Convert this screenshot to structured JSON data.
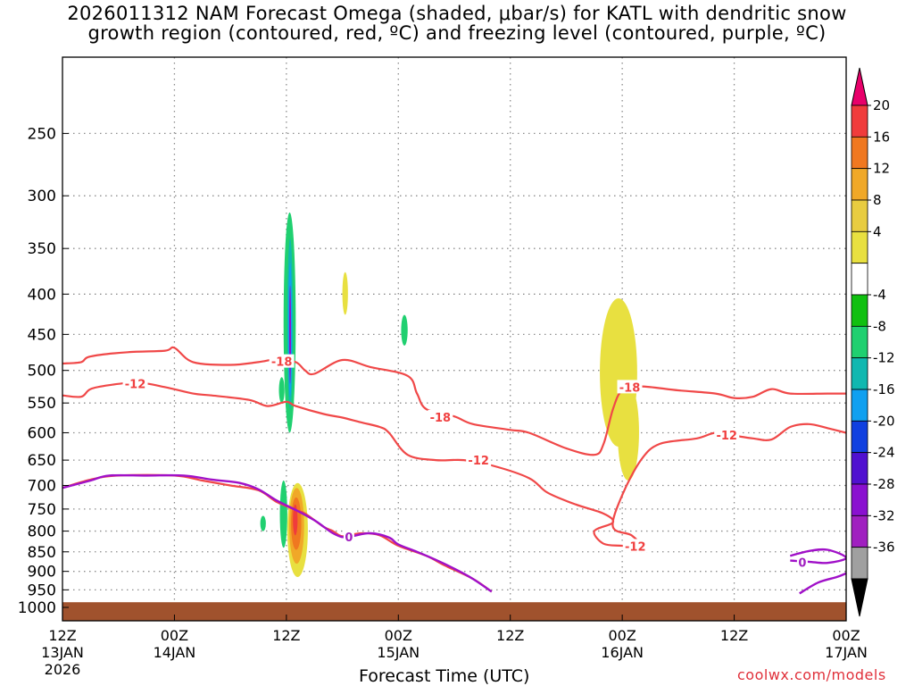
{
  "title_line1": "2026011312 NAM Forecast Omega (shaded, μbar/s) for KATL with dendritic snow",
  "title_line2": "growth region (contoured, red, ºC) and freezing level (contoured, purple, ºC)",
  "x_axis_title": "Forecast Time (UTC)",
  "credit": "coolwx.com/models",
  "chart_data": {
    "type": "time-height cross section",
    "x_unit": "hours since 2026-01-13 12Z",
    "xlim": [
      0,
      84
    ],
    "ylim_hPa": [
      1040,
      200
    ],
    "y_ticks": [
      250,
      300,
      350,
      400,
      450,
      500,
      550,
      600,
      650,
      700,
      750,
      800,
      850,
      900,
      950,
      1000
    ],
    "x_ticks": [
      {
        "h": 0,
        "l1": "12Z",
        "l2": "13JAN",
        "l3": "2026"
      },
      {
        "h": 12,
        "l1": "00Z",
        "l2": "14JAN",
        "l3": ""
      },
      {
        "h": 24,
        "l1": "12Z",
        "l2": "",
        "l3": ""
      },
      {
        "h": 36,
        "l1": "00Z",
        "l2": "15JAN",
        "l3": ""
      },
      {
        "h": 48,
        "l1": "12Z",
        "l2": "",
        "l3": ""
      },
      {
        "h": 60,
        "l1": "00Z",
        "l2": "16JAN",
        "l3": ""
      },
      {
        "h": 72,
        "l1": "12Z",
        "l2": "",
        "l3": ""
      },
      {
        "h": 84,
        "l1": "00Z",
        "l2": "17JAN",
        "l3": ""
      }
    ],
    "colorbar": {
      "labels": [
        "20",
        "16",
        "12",
        "8",
        "4",
        "-4",
        "-8",
        "-12",
        "-16",
        "-20",
        "-24",
        "-28",
        "-32",
        "-36"
      ],
      "colors": [
        "#e8006a",
        "#f03c3c",
        "#f07820",
        "#f0a828",
        "#e8cc40",
        "#e8e040",
        "#ffffff",
        "#10c010",
        "#20d070",
        "#10b8b0",
        "#10a0f0",
        "#1040e0",
        "#5010d0",
        "#8a10d0",
        "#a020c0",
        "#a0a0a0",
        "#000000"
      ]
    },
    "terrain_color": "#a0522d",
    "dgz_contours": [
      {
        "level": -18,
        "label": "-18",
        "points": [
          [
            0,
            490
          ],
          [
            2,
            488
          ],
          [
            3,
            480
          ],
          [
            7,
            474
          ],
          [
            11,
            472
          ],
          [
            12,
            468
          ],
          [
            14,
            488
          ],
          [
            18,
            492
          ],
          [
            21,
            488
          ],
          [
            23,
            484
          ],
          [
            25,
            488
          ],
          [
            26,
            500
          ],
          [
            27,
            505
          ],
          [
            30,
            485
          ],
          [
            33,
            495
          ],
          [
            37,
            508
          ],
          [
            38,
            535
          ],
          [
            39,
            560
          ],
          [
            42,
            572
          ],
          [
            44,
            585
          ],
          [
            48,
            595
          ],
          [
            50,
            600
          ],
          [
            54,
            628
          ],
          [
            57,
            640
          ],
          [
            58,
            620
          ],
          [
            59,
            560
          ],
          [
            60,
            530
          ],
          [
            62,
            524
          ],
          [
            66,
            530
          ],
          [
            70,
            535
          ],
          [
            72,
            542
          ],
          [
            74,
            540
          ],
          [
            76,
            528
          ],
          [
            78,
            535
          ],
          [
            82,
            535
          ],
          [
            84,
            535
          ]
        ]
      },
      {
        "level": -12,
        "label": "-12",
        "points": [
          [
            0,
            538
          ],
          [
            2,
            540
          ],
          [
            3,
            528
          ],
          [
            5,
            522
          ],
          [
            8,
            518
          ],
          [
            11,
            525
          ],
          [
            14,
            535
          ],
          [
            16,
            538
          ],
          [
            20,
            545
          ],
          [
            22,
            555
          ],
          [
            24,
            548
          ],
          [
            25,
            555
          ],
          [
            28,
            568
          ],
          [
            30,
            574
          ],
          [
            32,
            582
          ],
          [
            34,
            590
          ],
          [
            35,
            600
          ],
          [
            37,
            640
          ],
          [
            40,
            650
          ],
          [
            43,
            650
          ],
          [
            46,
            660
          ],
          [
            50,
            685
          ],
          [
            52,
            715
          ],
          [
            55,
            740
          ],
          [
            58,
            760
          ],
          [
            59,
            780
          ],
          [
            57,
            800
          ],
          [
            58,
            830
          ],
          [
            60,
            835
          ],
          [
            62,
            838
          ],
          [
            61,
            810
          ],
          [
            59,
            790
          ],
          [
            60,
            720
          ],
          [
            62,
            650
          ],
          [
            64,
            620
          ],
          [
            68,
            610
          ],
          [
            70,
            600
          ],
          [
            72,
            605
          ],
          [
            74,
            610
          ],
          [
            76,
            612
          ],
          [
            78,
            590
          ],
          [
            80,
            585
          ],
          [
            82,
            592
          ],
          [
            84,
            600
          ]
        ]
      },
      {
        "level": 0,
        "label": "0",
        "points": [
          [
            0,
            705
          ],
          [
            3,
            688
          ],
          [
            6,
            680
          ],
          [
            12,
            680
          ],
          [
            15,
            690
          ],
          [
            18,
            700
          ],
          [
            21,
            710
          ],
          [
            23,
            735
          ],
          [
            25,
            752
          ],
          [
            26,
            760
          ],
          [
            28,
            790
          ],
          [
            29,
            800
          ],
          [
            30,
            812
          ],
          [
            32,
            805
          ],
          [
            34,
            810
          ],
          [
            36,
            835
          ],
          [
            39,
            860
          ],
          [
            41,
            885
          ],
          [
            44,
            920
          ],
          [
            46,
            955
          ]
        ]
      }
    ],
    "frz_contours": [
      {
        "level": 0,
        "label": "0",
        "points": [
          [
            0,
            705
          ],
          [
            3,
            690
          ],
          [
            5,
            680
          ],
          [
            9,
            680
          ],
          [
            13,
            680
          ],
          [
            16,
            688
          ],
          [
            19,
            695
          ],
          [
            21,
            708
          ],
          [
            23,
            732
          ],
          [
            25,
            752
          ],
          [
            27,
            775
          ],
          [
            28,
            790
          ],
          [
            29,
            805
          ],
          [
            30,
            814
          ],
          [
            31,
            812
          ],
          [
            33,
            805
          ],
          [
            35,
            815
          ],
          [
            36,
            832
          ],
          [
            38,
            850
          ],
          [
            40,
            870
          ],
          [
            42,
            893
          ],
          [
            44,
            920
          ],
          [
            46,
            955
          ]
        ]
      },
      {
        "level": 0,
        "label": "0",
        "points": [
          [
            79,
            960
          ],
          [
            81,
            930
          ],
          [
            83,
            915
          ],
          [
            84,
            905
          ]
        ]
      },
      {
        "level": 0,
        "label": "0",
        "points": [
          [
            78,
            860
          ],
          [
            80,
            848
          ],
          [
            82,
            845
          ],
          [
            84,
            865
          ],
          [
            82,
            878
          ],
          [
            80,
            875
          ],
          [
            78,
            872
          ]
        ]
      }
    ],
    "omega_blobs": [
      {
        "value": -8,
        "h_min": 23.7,
        "h_max": 25.0,
        "p_top": 315,
        "p_bot": 600
      },
      {
        "value": -12,
        "h_min": 24.1,
        "h_max": 24.7,
        "p_top": 340,
        "p_bot": 560
      },
      {
        "value": -16,
        "h_min": 24.2,
        "h_max": 24.6,
        "p_top": 365,
        "p_bot": 540
      },
      {
        "value": -24,
        "h_min": 24.3,
        "h_max": 24.5,
        "p_top": 390,
        "p_bot": 520
      },
      {
        "value": -8,
        "h_min": 23.2,
        "h_max": 23.8,
        "p_top": 510,
        "p_bot": 550
      },
      {
        "value": -8,
        "h_min": 23.3,
        "h_max": 24.1,
        "p_top": 690,
        "p_bot": 840
      },
      {
        "value": -8,
        "h_min": 25.1,
        "h_max": 25.9,
        "p_top": 750,
        "p_bot": 800
      },
      {
        "value": -8,
        "h_min": 21.2,
        "h_max": 21.8,
        "p_top": 765,
        "p_bot": 800
      },
      {
        "value": 4,
        "h_min": 24.1,
        "h_max": 26.3,
        "p_top": 695,
        "p_bot": 915
      },
      {
        "value": 8,
        "h_min": 24.3,
        "h_max": 25.9,
        "p_top": 705,
        "p_bot": 880
      },
      {
        "value": 12,
        "h_min": 24.5,
        "h_max": 25.6,
        "p_top": 725,
        "p_bot": 845
      },
      {
        "value": 16,
        "h_min": 24.7,
        "h_max": 25.2,
        "p_top": 740,
        "p_bot": 810
      },
      {
        "value": 4,
        "h_min": 30.0,
        "h_max": 30.6,
        "p_top": 375,
        "p_bot": 425
      },
      {
        "value": -8,
        "h_min": 36.3,
        "h_max": 37.0,
        "p_top": 425,
        "p_bot": 465
      },
      {
        "value": 4,
        "h_min": 57.6,
        "h_max": 61.6,
        "p_top": 405,
        "p_bot": 625
      },
      {
        "value": 4,
        "h_min": 59.5,
        "h_max": 61.8,
        "p_top": 520,
        "p_bot": 690
      }
    ],
    "contour_labels": [
      {
        "text": "-18",
        "h": 23.5,
        "p": 487,
        "color": "#f04040"
      },
      {
        "text": "-12",
        "h": 7.8,
        "p": 520,
        "color": "#f04040"
      },
      {
        "text": "-18",
        "h": 40.5,
        "p": 573,
        "color": "#f04040"
      },
      {
        "text": "-12",
        "h": 44.6,
        "p": 650,
        "color": "#f04040"
      },
      {
        "text": "-18",
        "h": 60.8,
        "p": 525,
        "color": "#f04040"
      },
      {
        "text": "-12",
        "h": 61.4,
        "p": 836,
        "color": "#f04040"
      },
      {
        "text": "-12",
        "h": 71.2,
        "p": 604,
        "color": "#f04040"
      },
      {
        "text": "0",
        "h": 30.7,
        "p": 814,
        "color": "#a020c0"
      },
      {
        "text": "0",
        "h": 79.3,
        "p": 876,
        "color": "#a020c0"
      }
    ]
  }
}
